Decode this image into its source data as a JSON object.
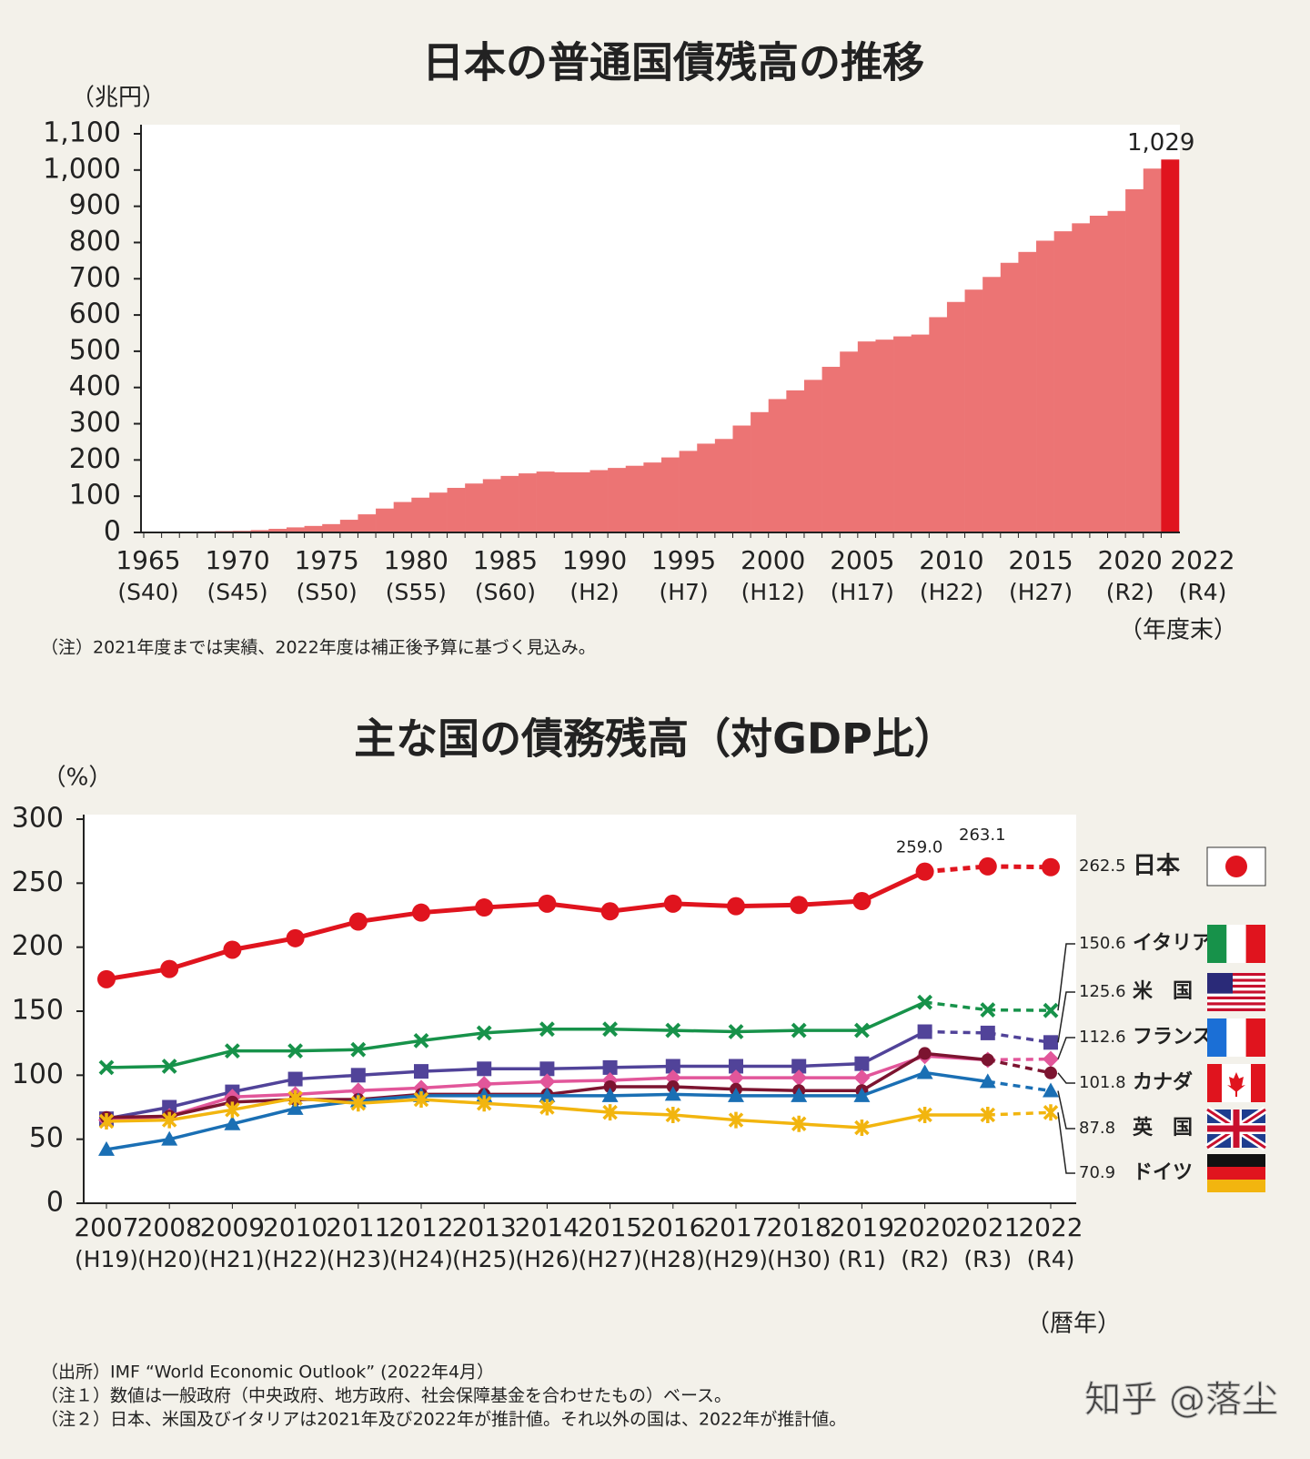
{
  "chart_data": [
    {
      "type": "bar",
      "title": "日本の普通国債残高の推移",
      "y_label": "（兆円）",
      "x_label": "（年度末）",
      "note": "（注）2021年度までは実績、2022年度は補正後予算に基づく見込み。",
      "categories": [
        "1965",
        null,
        null,
        null,
        null,
        "1970",
        null,
        null,
        null,
        null,
        "1975",
        null,
        null,
        null,
        null,
        "1980",
        null,
        null,
        null,
        null,
        "1985",
        null,
        null,
        null,
        null,
        "1990",
        null,
        null,
        null,
        null,
        "1995",
        null,
        null,
        null,
        null,
        "2000",
        null,
        null,
        null,
        null,
        "2005",
        null,
        null,
        null,
        null,
        "2010",
        null,
        null,
        null,
        null,
        "2015",
        null,
        null,
        null,
        null,
        "2020",
        null,
        "2022"
      ],
      "category_sublabels": [
        "(S40)",
        null,
        null,
        null,
        null,
        "(S45)",
        null,
        null,
        null,
        null,
        "(S50)",
        null,
        null,
        null,
        null,
        "(S55)",
        null,
        null,
        null,
        null,
        "(S60)",
        null,
        null,
        null,
        null,
        "(H2)",
        null,
        null,
        null,
        null,
        "(H7)",
        null,
        null,
        null,
        null,
        "(H12)",
        null,
        null,
        null,
        null,
        "(H17)",
        null,
        null,
        null,
        null,
        "(H22)",
        null,
        null,
        null,
        null,
        "(H27)",
        null,
        null,
        null,
        null,
        "(R2)",
        null,
        "(R4)"
      ],
      "values": [
        0.2,
        0.9,
        1.9,
        2.9,
        3.8,
        4.5,
        6.5,
        10,
        14,
        18,
        23,
        35,
        50,
        66,
        84,
        96,
        110,
        123,
        135,
        147,
        156,
        163,
        168,
        166,
        166,
        172,
        178,
        184,
        193,
        207,
        225,
        245,
        258,
        295,
        332,
        368,
        392,
        421,
        457,
        499,
        527,
        532,
        541,
        546,
        594,
        636,
        670,
        705,
        744,
        774,
        805,
        831,
        853,
        874,
        887,
        947,
        1004,
        1029
      ],
      "value_labels": [
        null,
        null,
        null,
        null,
        null,
        null,
        null,
        null,
        null,
        null,
        null,
        null,
        null,
        null,
        null,
        null,
        null,
        null,
        null,
        null,
        null,
        null,
        null,
        null,
        null,
        null,
        null,
        null,
        null,
        null,
        null,
        null,
        null,
        null,
        null,
        null,
        null,
        null,
        null,
        null,
        null,
        null,
        null,
        null,
        null,
        null,
        null,
        null,
        null,
        null,
        null,
        null,
        null,
        null,
        null,
        null,
        null,
        "1,029"
      ],
      "color": "#ec7474",
      "highlight_color": "#e0141e",
      "ylim": [
        0,
        1100
      ],
      "yticks": [
        0,
        100,
        200,
        300,
        400,
        500,
        600,
        700,
        800,
        900,
        {
          "value": 1000,
          "label": "1,000"
        },
        {
          "value": 1100,
          "label": "1,100"
        }
      ]
    },
    {
      "type": "line",
      "title": "主な国の債務残高（対GDP比）",
      "y_label": "（%）",
      "x_label": "（暦年）",
      "categories": [
        "2007",
        "2008",
        "2009",
        "2010",
        "2011",
        "2012",
        "2013",
        "2014",
        "2015",
        "2016",
        "2017",
        "2018",
        "2019",
        "2020",
        "2021",
        "2022"
      ],
      "category_sublabels": [
        "(H19)",
        "(H20)",
        "(H21)",
        "(H22)",
        "(H23)",
        "(H24)",
        "(H25)",
        "(H26)",
        "(H27)",
        "(H28)",
        "(H29)",
        "(H30)",
        "(R1)",
        "(R2)",
        "(R3)",
        "(R4)"
      ],
      "ylim": [
        0,
        300
      ],
      "yticks": [
        0,
        50,
        100,
        150,
        200,
        250,
        300
      ],
      "series": [
        {
          "name": "日本",
          "color": "#e0141e",
          "marker": "circle",
          "dashed_from": "2020",
          "values": [
            175,
            183,
            198,
            207,
            220,
            227,
            231,
            234,
            228,
            234,
            232,
            233,
            236,
            259,
            263.1,
            262.5
          ],
          "value_labels": [
            null,
            null,
            null,
            null,
            null,
            null,
            null,
            null,
            null,
            null,
            null,
            null,
            null,
            "259.0",
            "263.1",
            null
          ]
        },
        {
          "name": "イタリア",
          "color": "#17924a",
          "marker": "x",
          "dashed_from": "2020",
          "values": [
            106,
            107,
            119,
            119,
            120,
            127,
            133,
            136,
            136,
            135,
            134,
            135,
            135,
            157,
            151,
            150.6
          ]
        },
        {
          "name": "米　国",
          "color": "#514399",
          "marker": "square",
          "dashed_from": "2020",
          "values": [
            66,
            75,
            87,
            97,
            100,
            103,
            105,
            105,
            106,
            107,
            107,
            107,
            109,
            134,
            133,
            125.6
          ]
        },
        {
          "name": "フランス",
          "color": "#e2569a",
          "marker": "diamond",
          "dashed_from": "2021",
          "values": [
            65,
            68,
            83,
            85,
            88,
            90,
            93,
            95,
            96,
            98,
            98,
            98,
            98,
            115,
            112,
            112.6
          ]
        },
        {
          "name": "カナダ",
          "color": "#7c1430",
          "marker": "dot",
          "dashed_from": "2021",
          "values": [
            67,
            68,
            79,
            81,
            81,
            85,
            85,
            85,
            91,
            91,
            89,
            88,
            88,
            117,
            112,
            101.8
          ]
        },
        {
          "name": "英　国",
          "color": "#1a6fb4",
          "marker": "triangle",
          "dashed_from": "2021",
          "values": [
            42,
            50,
            62,
            74,
            80,
            84,
            84,
            84,
            84,
            85,
            84,
            84,
            84,
            102,
            95,
            87.8
          ]
        },
        {
          "name": "ドイツ",
          "color": "#f2b50f",
          "marker": "asterisk",
          "dashed_from": "2021",
          "values": [
            64,
            65,
            73,
            82,
            78,
            81,
            78,
            75,
            71,
            69,
            65,
            62,
            59,
            69,
            69,
            70.9
          ]
        }
      ],
      "notes": [
        "（出所）IMF “World Economic Outlook” (2022年4月）",
        "（注１）数値は一般政府（中央政府、地方政府、社会保障基金を合わせたもの）ベース。",
        "（注２）日本、米国及びイタリアは2021年及び2022年が推計値。それ以外の国は、2022年が推計値。"
      ]
    }
  ],
  "watermark": "知乎 @落尘"
}
